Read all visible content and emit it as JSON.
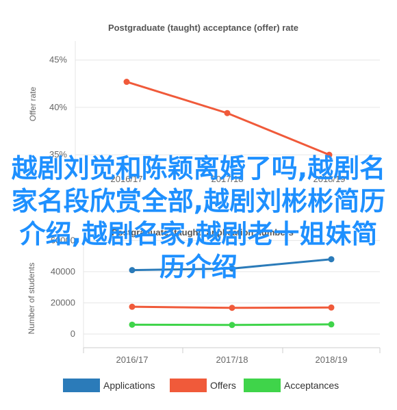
{
  "charts": {
    "top": {
      "title": "Postgraduate (taught) acceptance (offer) rate",
      "ylabel": "Offer rate",
      "categories": [
        "2016/17",
        "2017/18",
        "2018/19"
      ],
      "ticks": [
        "35%",
        "40%",
        "45%"
      ],
      "color": "#f05a3a"
    },
    "bottom": {
      "title": "Postgraduate (taught) application numbers",
      "ylabel": "Number of students",
      "categories": [
        "2016/17",
        "2017/18",
        "2018/19"
      ],
      "ticks": [
        "0",
        "20000",
        "40000",
        "60000"
      ],
      "legend": [
        "Applications",
        "Offers",
        "Acceptances"
      ]
    }
  },
  "overlay_lines": [
    "越剧刘觉和陈颖离婚了吗,越剧名",
    "家名段欣赏全部,越剧刘彬彬简历",
    "介绍,越剧名家,越剧老十姐妹简",
    "历介绍"
  ],
  "colors": {
    "applications": "#2b7bb9",
    "offers": "#f05a3a",
    "acceptances": "#3fd44a",
    "grid": "#e6e6e6",
    "axis_text": "#666666",
    "title_text": "#555555",
    "overlay": "#1e90ff"
  },
  "chart_data": [
    {
      "type": "line",
      "title": "Postgraduate (taught) acceptance (offer) rate",
      "ylabel": "Offer rate",
      "xlabel": "",
      "categories": [
        "2016/17",
        "2017/18",
        "2018/19"
      ],
      "series": [
        {
          "values": [
            42.7,
            39.4,
            35.0
          ]
        }
      ],
      "ylim": [
        34,
        47
      ],
      "yticks": [
        35,
        40,
        45
      ],
      "unit": "%",
      "grid": true
    },
    {
      "type": "line",
      "title": "Postgraduate (taught) application numbers",
      "ylabel": "Number of students",
      "xlabel": "",
      "categories": [
        "2016/17",
        "2017/18",
        "2018/19"
      ],
      "series": [
        {
          "name": "Applications",
          "values": [
            41000,
            42000,
            48000
          ]
        },
        {
          "name": "Offers",
          "values": [
            17500,
            16800,
            17000
          ]
        },
        {
          "name": "Acceptances",
          "values": [
            6000,
            5800,
            6200
          ]
        }
      ],
      "ylim": [
        0,
        65000
      ],
      "yticks": [
        0,
        20000,
        40000,
        60000
      ],
      "grid": true,
      "legend": "bottom"
    }
  ]
}
